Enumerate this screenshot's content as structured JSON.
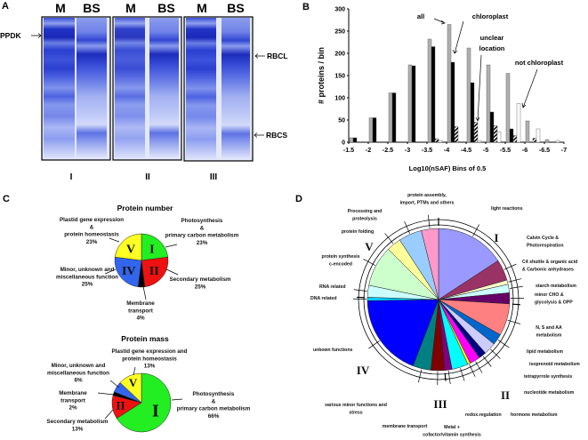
{
  "panels": {
    "a": "A",
    "b": "B",
    "c": "C",
    "d": "D"
  },
  "gel": {
    "lane_labels": [
      "M",
      "BS",
      "M",
      "BS",
      "M",
      "BS"
    ],
    "group_labels": [
      "I",
      "II",
      "III"
    ],
    "markers": {
      "ppdk": "PPDK",
      "rbcl": "RBCL",
      "rbcs": "RBCS"
    }
  },
  "chart_data": [
    {
      "type": "bar",
      "xlabel": "Log10(nSAF)  Bins of 0.5",
      "ylabel": "# proteins / bin",
      "ylim": [
        0,
        300
      ],
      "yticks": [
        "0",
        "50",
        "100",
        "150",
        "200",
        "250",
        "300"
      ],
      "xticks": [
        "-1.5",
        "-2",
        "-2.5",
        "-3",
        "-3.5",
        "-4",
        "-4.5",
        "-5",
        "-5.5",
        "-6",
        "-6.5",
        "-7"
      ],
      "grid": false,
      "series": [
        {
          "name": "all",
          "color": "#b0b0b0",
          "values": [
            10,
            55,
            111,
            174,
            232,
            265,
            212,
            174,
            155,
            48,
            6
          ]
        },
        {
          "name": "chloroplast",
          "color": "#000000",
          "values": [
            10,
            55,
            111,
            172,
            215,
            180,
            134,
            68,
            30,
            0,
            0
          ]
        },
        {
          "name": "unclear location",
          "color": "hatched",
          "values": [
            0,
            0,
            0,
            0,
            8,
            35,
            45,
            37,
            15,
            9,
            0
          ]
        },
        {
          "name": "not chloroplast",
          "color": "#ffffff",
          "values": [
            0,
            0,
            0,
            0,
            4,
            0,
            4,
            23,
            87,
            30,
            4
          ]
        }
      ],
      "annotations": {
        "all": "all",
        "chloroplast": "chloroplast",
        "unclear_1": "unclear",
        "unclear_2": "location",
        "not_chloroplast": "not chloroplast"
      }
    },
    {
      "type": "pie",
      "title": "Protein number",
      "slices": [
        {
          "numeral": "I",
          "label": [
            "Photosynthesis",
            "&",
            "primary carbon metabolism",
            "23%"
          ],
          "value": 23,
          "color": "#22ee22"
        },
        {
          "numeral": "II",
          "label": [
            "Secondary metabolism",
            "25%"
          ],
          "value": 25,
          "color": "#ee1111"
        },
        {
          "numeral": "",
          "label": [
            "Membrane",
            "transport",
            "4%"
          ],
          "value": 4,
          "color": "#000000"
        },
        {
          "numeral": "IV",
          "label": [
            "Minor, unknown and",
            "miscellaneous function",
            "25%"
          ],
          "value": 25,
          "color": "#3366ee"
        },
        {
          "numeral": "V",
          "label": [
            "Plastid gene expression",
            "&",
            "protein homeostasis",
            "23%"
          ],
          "value": 23,
          "color": "#ffff22"
        }
      ]
    },
    {
      "type": "pie",
      "title": "Protein mass",
      "slices": [
        {
          "numeral": "I",
          "label": [
            "Photosynthesis",
            "&",
            "primary carbon metabolism",
            "66%"
          ],
          "value": 66,
          "color": "#22ee22"
        },
        {
          "numeral": "II",
          "label": [
            "Secondary metabolism",
            "13%"
          ],
          "value": 13,
          "color": "#ee1111"
        },
        {
          "numeral": "",
          "label": [
            "Membrane",
            "transport",
            "2%"
          ],
          "value": 2,
          "color": "#000000"
        },
        {
          "numeral": "",
          "label": [
            "Minor, unknown and",
            "miscellaneous function",
            "6%"
          ],
          "value": 6,
          "color": "#3366ee"
        },
        {
          "numeral": "V",
          "label": [
            "Plastid gene expression and",
            "protein homeostasis",
            "13%"
          ],
          "value": 13,
          "color": "#ffff22"
        }
      ]
    },
    {
      "type": "pie",
      "group_numerals": [
        "I",
        "II",
        "III",
        "IV",
        "V"
      ],
      "slices": [
        {
          "label": [
            "light reactions"
          ],
          "value": 15.8,
          "color": "#9999ff"
        },
        {
          "label": [
            "Calvin Cycle &",
            "Photorespiration"
          ],
          "value": 4.8,
          "color": "#993366"
        },
        {
          "label": [
            "C4 shuttle & organic acid",
            "& Carbonic anhydrases"
          ],
          "value": 1.0,
          "color": "#ffffcc"
        },
        {
          "label": [
            "starch metabolism"
          ],
          "value": 1.9,
          "color": "#ccffff"
        },
        {
          "label": [
            "minor CHO &",
            "glycolysis & OPP"
          ],
          "value": 2.5,
          "color": "#660066"
        },
        {
          "label": [
            "N, S and AA",
            "metabolism"
          ],
          "value": 7.3,
          "color": "#ff8080"
        },
        {
          "label": [
            "lipid metabolism"
          ],
          "value": 2.5,
          "color": "#0066cc"
        },
        {
          "label": [
            "isoprenoid metabolism"
          ],
          "value": 2.8,
          "color": "#ccccff"
        },
        {
          "label": [
            "tetrapyrrole synthesis"
          ],
          "value": 1.7,
          "color": "#000080"
        },
        {
          "label": [
            "nucleotide metabolism"
          ],
          "value": 2.4,
          "color": "#ff00ff"
        },
        {
          "label": [
            "hormone metabolism"
          ],
          "value": 0.6,
          "color": "#ffff00"
        },
        {
          "label": [
            "redox.regulation"
          ],
          "value": 3.7,
          "color": "#00ffff"
        },
        {
          "label": [
            "Metal +",
            "cofactor/vitamin synthesis"
          ],
          "value": 1.7,
          "color": "#800080"
        },
        {
          "label": [
            "membrane transport"
          ],
          "value": 3.1,
          "color": "#800000"
        },
        {
          "label": [
            "various minor functions and",
            "stress"
          ],
          "value": 4.1,
          "color": "#008080"
        },
        {
          "label": [
            "unkown functions"
          ],
          "value": 18.9,
          "color": "#0000ff"
        },
        {
          "label": [
            "DNA related"
          ],
          "value": 0.8,
          "color": "#00ccff"
        },
        {
          "label": [
            "RNA related"
          ],
          "value": 2.7,
          "color": "#ccffff"
        },
        {
          "label": [
            "protein synthesis",
            "c-encoded"
          ],
          "value": 9.3,
          "color": "#ccffcc"
        },
        {
          "label": [
            "protein folding"
          ],
          "value": 3.3,
          "color": "#ffff99"
        },
        {
          "label": [
            "Processing and",
            "proteolysis"
          ],
          "value": 5.3,
          "color": "#99ccff"
        },
        {
          "label": [
            "protein assembly,",
            "import, PTMs and others"
          ],
          "value": 3.9,
          "color": "#ff99cc"
        }
      ]
    }
  ]
}
